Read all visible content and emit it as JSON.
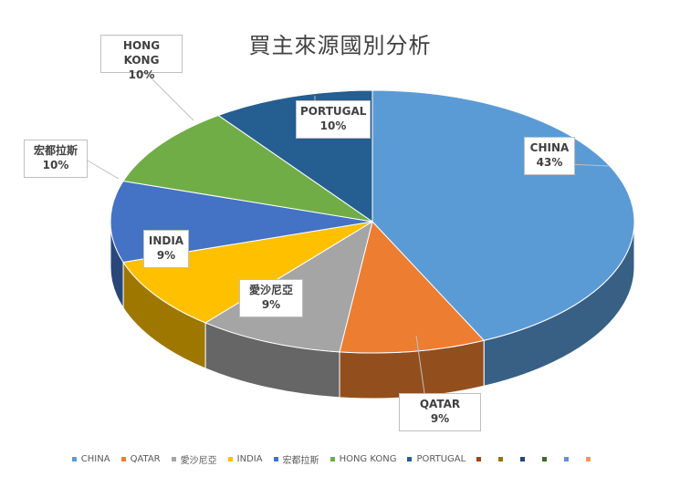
{
  "chart_data": {
    "type": "pie",
    "title": "買主來源國別分析",
    "slices": [
      {
        "name": "CHINA",
        "label": "43%",
        "value": 43,
        "color": "#5b9bd5"
      },
      {
        "name": "QATAR",
        "label": "9%",
        "value": 9,
        "color": "#ed7d31"
      },
      {
        "name": "愛沙尼亞",
        "label": "9%",
        "value": 9,
        "color": "#a5a5a5"
      },
      {
        "name": "INDIA",
        "label": "9%",
        "value": 9,
        "color": "#ffc000"
      },
      {
        "name": "宏都拉斯",
        "label": "10%",
        "value": 10,
        "color": "#4472c4"
      },
      {
        "name": "HONG KONG",
        "label": "10%",
        "value": 10,
        "color": "#70ad47"
      },
      {
        "name": "PORTUGAL",
        "label": "10%",
        "value": 10,
        "color": "#255e91"
      }
    ],
    "extra_legend_colors": [
      "#9e480e",
      "#997300",
      "#264478",
      "#43682b",
      "#698ed0",
      "#f1975a"
    ],
    "legend_position": "bottom",
    "style": "3d"
  }
}
